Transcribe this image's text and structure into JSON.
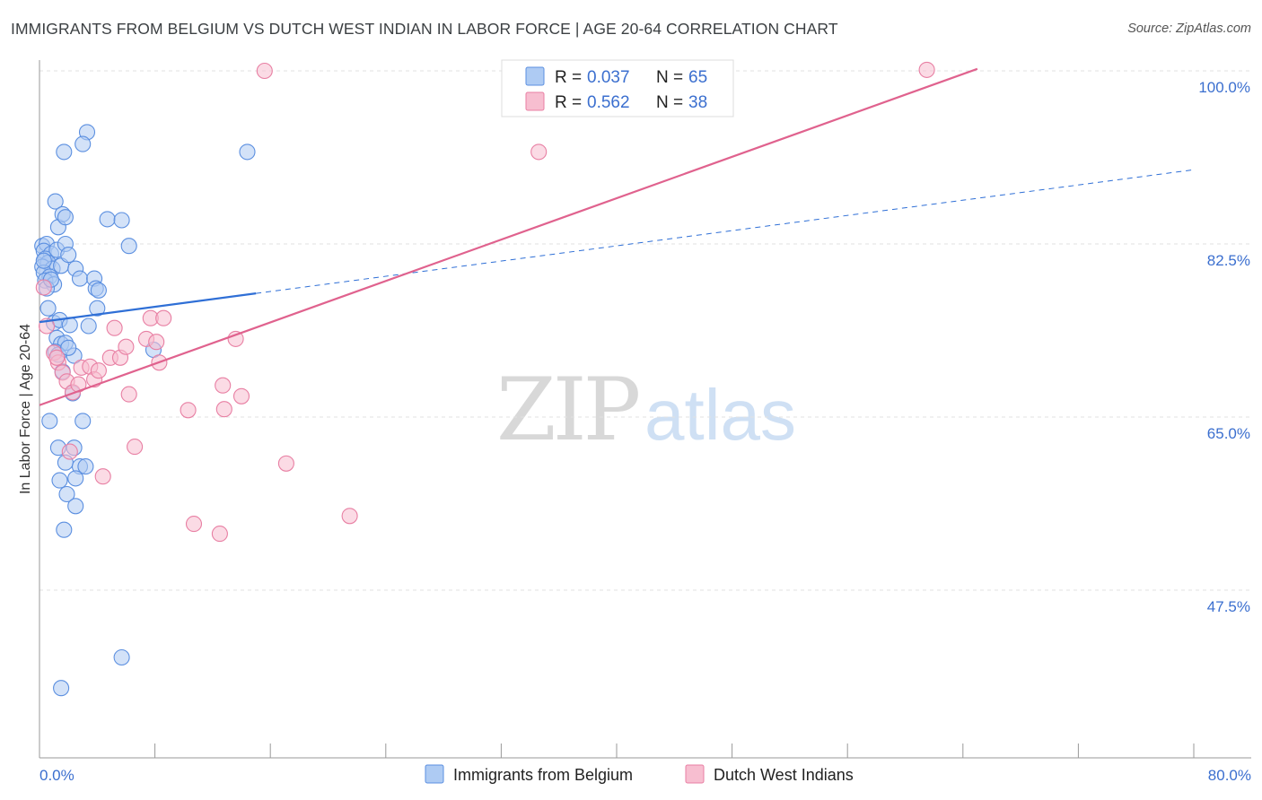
{
  "title": "IMMIGRANTS FROM BELGIUM VS DUTCH WEST INDIAN IN LABOR FORCE | AGE 20-64 CORRELATION CHART",
  "source": "Source: ZipAtlas.com",
  "watermark": {
    "zip": "ZIP",
    "atlas": "atlas"
  },
  "chart_data": {
    "type": "scatter",
    "title": "IMMIGRANTS FROM BELGIUM VS DUTCH WEST INDIAN IN LABOR FORCE | AGE 20-64 CORRELATION CHART",
    "ylabel": "In Labor Force | Age 20-64",
    "xlim": [
      0,
      80
    ],
    "ylim": [
      30,
      102
    ],
    "y_ticks": [
      {
        "value": 100,
        "label": "100.0%"
      },
      {
        "value": 82.5,
        "label": "82.5%"
      },
      {
        "value": 65,
        "label": "65.0%"
      },
      {
        "value": 47.5,
        "label": "47.5%"
      }
    ],
    "x_tick_labels": {
      "min": "0.0%",
      "max": "80.0%"
    },
    "x_tick_values": [
      0,
      8,
      16,
      24,
      32,
      40,
      48,
      56,
      64,
      72,
      80
    ],
    "legend": {
      "r_label": "R =",
      "n_label": "N =",
      "entries": [
        {
          "name": "Immigrants from Belgium",
          "r": "0.037",
          "n": "65",
          "color": "#5b8fe0",
          "fill": "#aecbf3"
        },
        {
          "name": "Dutch West Indians",
          "r": "0.562",
          "n": "38",
          "color": "#e87fa3",
          "fill": "#f7bed0"
        }
      ]
    },
    "series": [
      {
        "name": "Immigrants from Belgium",
        "color": "#5b8fe0",
        "fill": "#aecbf3",
        "trend": {
          "solid": [
            [
              0,
              74.6
            ],
            [
              15,
              77.5
            ]
          ],
          "dashed": [
            [
              15,
              77.5
            ],
            [
              80,
              90.0
            ]
          ],
          "color": "#2f6fd6"
        },
        "points": [
          [
            0.2,
            82.3
          ],
          [
            0.5,
            82.5
          ],
          [
            0.3,
            81.8
          ],
          [
            0.8,
            81.5
          ],
          [
            0.4,
            81.0
          ],
          [
            0.6,
            80.6
          ],
          [
            0.2,
            80.2
          ],
          [
            0.9,
            80.0
          ],
          [
            0.3,
            79.6
          ],
          [
            0.7,
            79.2
          ],
          [
            0.4,
            78.8
          ],
          [
            1.0,
            78.4
          ],
          [
            0.5,
            78.0
          ],
          [
            1.2,
            81.9
          ],
          [
            1.5,
            80.3
          ],
          [
            1.8,
            82.5
          ],
          [
            2.0,
            81.4
          ],
          [
            2.5,
            80.0
          ],
          [
            2.8,
            79.0
          ],
          [
            3.8,
            79.0
          ],
          [
            3.9,
            78.0
          ],
          [
            4.1,
            77.8
          ],
          [
            4.0,
            76.0
          ],
          [
            1.1,
            86.8
          ],
          [
            1.3,
            84.2
          ],
          [
            1.6,
            85.5
          ],
          [
            1.8,
            85.2
          ],
          [
            1.7,
            91.8
          ],
          [
            3.3,
            93.8
          ],
          [
            3.0,
            92.6
          ],
          [
            14.4,
            91.8
          ],
          [
            4.7,
            85.0
          ],
          [
            5.7,
            84.9
          ],
          [
            6.2,
            82.3
          ],
          [
            0.6,
            76.0
          ],
          [
            1.0,
            74.5
          ],
          [
            1.4,
            74.8
          ],
          [
            2.1,
            74.3
          ],
          [
            1.2,
            73.0
          ],
          [
            1.5,
            72.4
          ],
          [
            1.8,
            72.5
          ],
          [
            1.1,
            71.6
          ],
          [
            1.3,
            71.3
          ],
          [
            2.4,
            71.2
          ],
          [
            7.9,
            71.8
          ],
          [
            1.6,
            69.6
          ],
          [
            2.3,
            67.4
          ],
          [
            0.7,
            64.6
          ],
          [
            3.0,
            64.6
          ],
          [
            1.3,
            61.9
          ],
          [
            2.4,
            61.9
          ],
          [
            1.8,
            60.4
          ],
          [
            2.8,
            60.0
          ],
          [
            3.2,
            60.0
          ],
          [
            1.4,
            58.6
          ],
          [
            2.5,
            58.8
          ],
          [
            1.9,
            57.2
          ],
          [
            2.5,
            56.0
          ],
          [
            1.7,
            53.6
          ],
          [
            5.7,
            40.7
          ],
          [
            1.5,
            37.6
          ],
          [
            0.3,
            80.8
          ],
          [
            0.8,
            78.9
          ],
          [
            2.0,
            72.0
          ],
          [
            3.4,
            74.2
          ]
        ]
      },
      {
        "name": "Dutch West Indians",
        "color": "#e87fa3",
        "fill": "#f7bed0",
        "trend": {
          "solid": [
            [
              0,
              66.2
            ],
            [
              65,
              100.2
            ]
          ],
          "color": "#e0628e"
        },
        "points": [
          [
            0.3,
            78.1
          ],
          [
            0.5,
            74.2
          ],
          [
            1.0,
            71.5
          ],
          [
            1.3,
            70.5
          ],
          [
            1.6,
            69.5
          ],
          [
            1.9,
            68.6
          ],
          [
            2.3,
            67.5
          ],
          [
            2.1,
            61.5
          ],
          [
            2.7,
            68.3
          ],
          [
            2.9,
            70.0
          ],
          [
            3.5,
            70.1
          ],
          [
            3.8,
            68.8
          ],
          [
            4.1,
            69.7
          ],
          [
            4.4,
            59.0
          ],
          [
            4.9,
            71.0
          ],
          [
            5.2,
            74.0
          ],
          [
            5.6,
            71.0
          ],
          [
            6.0,
            72.1
          ],
          [
            6.2,
            67.3
          ],
          [
            6.6,
            62.0
          ],
          [
            7.4,
            72.9
          ],
          [
            7.7,
            75.0
          ],
          [
            8.1,
            72.6
          ],
          [
            8.3,
            70.5
          ],
          [
            8.6,
            75.0
          ],
          [
            10.3,
            65.7
          ],
          [
            10.7,
            54.2
          ],
          [
            12.5,
            53.2
          ],
          [
            12.7,
            68.2
          ],
          [
            12.8,
            65.8
          ],
          [
            13.6,
            72.9
          ],
          [
            14.0,
            67.1
          ],
          [
            17.1,
            60.3
          ],
          [
            21.5,
            55.0
          ],
          [
            15.6,
            100.0
          ],
          [
            34.6,
            91.8
          ],
          [
            61.5,
            100.1
          ],
          [
            1.2,
            71.0
          ]
        ]
      }
    ]
  }
}
